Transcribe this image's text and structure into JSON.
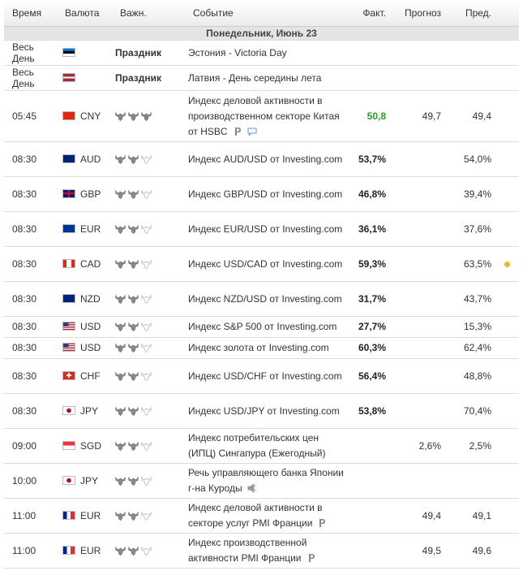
{
  "header": {
    "columns": [
      "Время",
      "Валюта",
      "Важн.",
      "Событие",
      "Факт.",
      "Прогноз",
      "Пред."
    ]
  },
  "day": "Понедельник, Июнь 23",
  "rows": [
    {
      "time": "Весь День",
      "importance_label": "Праздник",
      "event": "Эстония - Victoria Day"
    },
    {
      "time": "Весь День",
      "importance_label": "Праздник",
      "event": "Латвия - День середины лета"
    },
    {
      "time": "05:45",
      "currency": "CNY",
      "importance": 3,
      "event": "Индекс деловой активности в производственном секторе Китая от HSBC",
      "actual": "50,8",
      "actual_color": "#2a9a2a",
      "forecast": "49,7",
      "previous": "49,4"
    },
    {
      "time": "08:30",
      "currency": "AUD",
      "importance": 2,
      "event": "Индекс AUD/USD от Investing.com",
      "actual": "53,7%",
      "previous": "54,0%"
    },
    {
      "time": "08:30",
      "currency": "GBP",
      "importance": 2,
      "event": "Индекс GBP/USD от Investing.com",
      "actual": "46,8%",
      "previous": "39,4%"
    },
    {
      "time": "08:30",
      "currency": "EUR",
      "importance": 2,
      "event": "Индекс EUR/USD от Investing.com",
      "actual": "36,1%",
      "previous": "37,6%"
    },
    {
      "time": "08:30",
      "currency": "CAD",
      "importance": 2,
      "event": "Индекс USD/CAD от Investing.com",
      "actual": "59,3%",
      "previous": "63,5%"
    },
    {
      "time": "08:30",
      "currency": "NZD",
      "importance": 2,
      "event": "Индекс NZD/USD от Investing.com",
      "actual": "31,7%",
      "previous": "43,7%"
    },
    {
      "time": "08:30",
      "currency": "USD",
      "importance": 2,
      "event": "Индекс S&P 500 от Investing.com",
      "actual": "27,7%",
      "previous": "15,3%"
    },
    {
      "time": "08:30",
      "currency": "USD",
      "importance": 2,
      "event": "Индекс золота от Investing.com",
      "actual": "60,3%",
      "previous": "62,4%"
    },
    {
      "time": "08:30",
      "currency": "CHF",
      "importance": 2,
      "event": "Индекс USD/CHF от Investing.com",
      "actual": "56,4%",
      "previous": "48,8%"
    },
    {
      "time": "08:30",
      "currency": "JPY",
      "importance": 2,
      "event": "Индекс USD/JPY от Investing.com",
      "actual": "53,8%",
      "previous": "70,4%"
    },
    {
      "time": "09:00",
      "currency": "SGD",
      "importance": 2,
      "event": "Индекс потребительских цен (ИПЦ) Сингапура (Ежегодный)",
      "forecast": "2,6%",
      "previous": "2,5%"
    },
    {
      "time": "10:00",
      "currency": "JPY",
      "importance": 2,
      "event": "Речь управляющего банка Японии г-на Куроды"
    },
    {
      "time": "11:00",
      "currency": "EUR",
      "importance": 2,
      "event": "Индекс деловой активности в секторе услуг PMI Франции",
      "forecast": "49,4",
      "previous": "49,1"
    },
    {
      "time": "11:00",
      "currency": "EUR",
      "importance": 2,
      "event": "Индекс производственной активности PMI Франции",
      "forecast": "49,5",
      "previous": "49,6"
    }
  ]
}
